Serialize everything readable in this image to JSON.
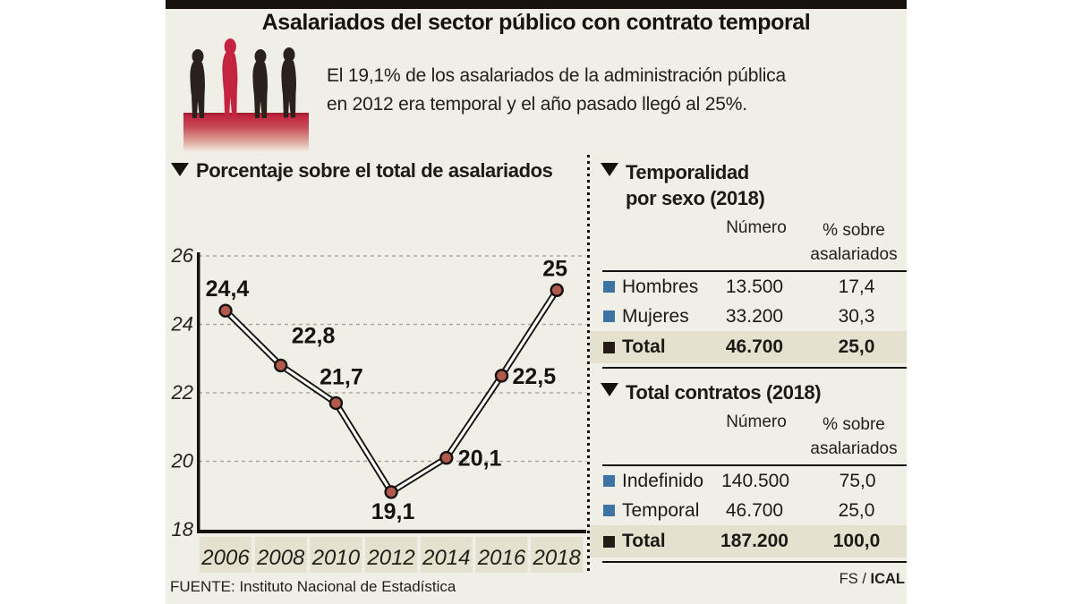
{
  "header": {
    "title": "Asalariados del sector público con contrato temporal",
    "subtitle_line1": "El 19,1% de los asalariados de la administración pública",
    "subtitle_line2": "en 2012 era temporal y el año pasado llegó al 25%."
  },
  "chart_section": {
    "heading": "Porcentaje sobre el total de asalariados"
  },
  "chart_data": {
    "type": "line",
    "title": "Porcentaje sobre el total de asalariados",
    "categories": [
      "2006",
      "2008",
      "2010",
      "2012",
      "2014",
      "2016",
      "2018"
    ],
    "values": [
      24.4,
      22.8,
      21.7,
      19.1,
      20.1,
      22.5,
      25
    ],
    "point_labels": [
      "24,4",
      "22,8",
      "21,7",
      "19,1",
      "20,1",
      "22,5",
      "25"
    ],
    "xlabel": "",
    "ylabel": "",
    "ylim": [
      18,
      26
    ],
    "yticks": [
      18,
      20,
      22,
      24,
      26
    ],
    "grid": "horizontal-dashed",
    "legend": "none",
    "line_style": "double black outline with white core",
    "marker": "circle",
    "marker_color": "#b0594c",
    "marker_stroke": "#14110e",
    "gridline_color": "#aaa9a0",
    "axis_color": "#14110e",
    "tick_cell_color": "#e4e1cf"
  },
  "tables": [
    {
      "heading_line1": "Temporalidad",
      "heading_line2": "por sexo (2018)",
      "col_num": "Número",
      "col_pct_line1": "% sobre",
      "col_pct_line2": "asalariados",
      "rows": [
        {
          "label": "Hombres",
          "numero": "13.500",
          "pct": "17,4"
        },
        {
          "label": "Mujeres",
          "numero": "33.200",
          "pct": "30,3"
        }
      ],
      "total": {
        "label": "Total",
        "numero": "46.700",
        "pct": "25,0"
      }
    },
    {
      "heading_line1": "Total contratos (2018)",
      "col_num": "Número",
      "col_pct_line1": "% sobre",
      "col_pct_line2": "asalariados",
      "rows": [
        {
          "label": "Indefinido",
          "numero": "140.500",
          "pct": "75,0"
        },
        {
          "label": "Temporal",
          "numero": "46.700",
          "pct": "25,0"
        }
      ],
      "total": {
        "label": "Total",
        "numero": "187.200",
        "pct": "100,0"
      }
    }
  ],
  "footer": {
    "source": "FUENTE: Instituto Nacional de Estadística",
    "credit_prefix": "FS / ",
    "credit_bold": "ICAL"
  },
  "colors": {
    "background": "#f0efe7",
    "highlight_row": "#e4e1cf",
    "bullet_blue": "#3e74a4",
    "bullet_black": "#241b16",
    "accent_red": "#c52440",
    "marker_red": "#b0594c",
    "bar_black": "#17120e"
  }
}
